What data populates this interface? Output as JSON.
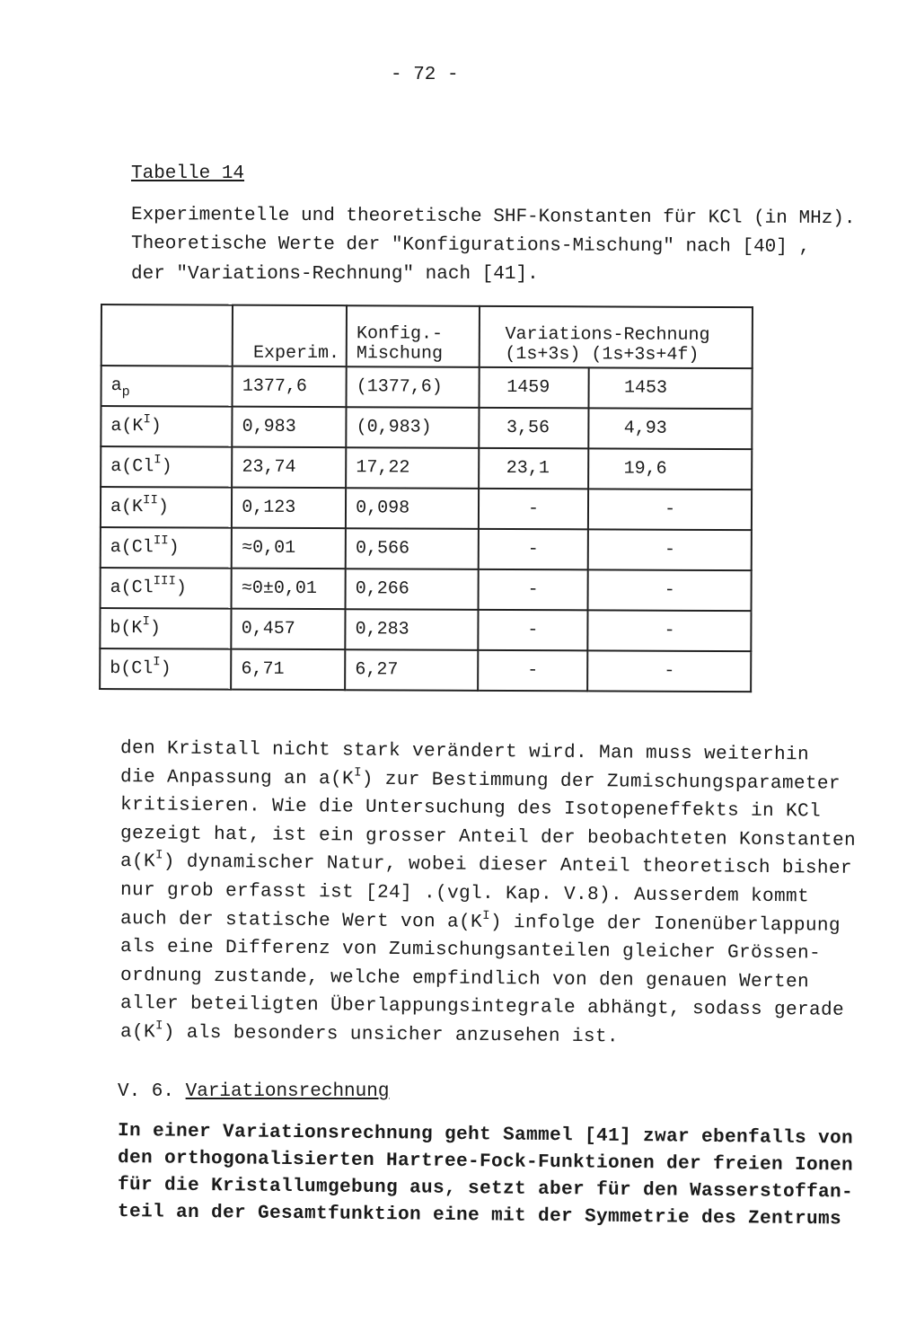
{
  "page_number": "- 72 -",
  "table_label": "Tabelle 14",
  "caption": [
    "Experimentelle und theoretische SHF-Konstanten für KCl (in MHz).",
    "Theoretische Werte der \"Konfigurations-Mischung\" nach [40] ,",
    "der \"Variations-Rechnung\" nach [41]."
  ],
  "table": {
    "headers": {
      "experim": "Experim.",
      "konfig_1": "Konfig.-",
      "konfig_2": "Mischung",
      "variation": "Variations-Rechnung",
      "var_a": "(1s+3s)",
      "var_b": "(1s+3s+4f)"
    },
    "rows": [
      {
        "base": "a",
        "sub": "p",
        "sup": "",
        "close": "",
        "exp": "1377,6",
        "konfig": "(1377,6)",
        "v1": "1459",
        "v2": "1453"
      },
      {
        "base": "a(K",
        "sub": "",
        "sup": "I",
        "close": ")",
        "exp": "0,983",
        "konfig": "(0,983)",
        "v1": "3,56",
        "v2": "4,93"
      },
      {
        "base": "a(Cl",
        "sub": "",
        "sup": "I",
        "close": ")",
        "exp": "23,74",
        "konfig": "17,22",
        "v1": "23,1",
        "v2": "19,6"
      },
      {
        "base": "a(K",
        "sub": "",
        "sup": "II",
        "close": ")",
        "exp": "0,123",
        "konfig": "0,098",
        "v1": "-",
        "v2": "-"
      },
      {
        "base": "a(Cl",
        "sub": "",
        "sup": "II",
        "close": ")",
        "exp": "≈0,01",
        "konfig": "0,566",
        "v1": "-",
        "v2": "-"
      },
      {
        "base": "a(Cl",
        "sub": "",
        "sup": "III",
        "close": ")",
        "exp": "≈0±0,01",
        "konfig": "0,266",
        "v1": "-",
        "v2": "-"
      },
      {
        "base": "b(K",
        "sub": "",
        "sup": "I",
        "close": ")",
        "exp": "0,457",
        "konfig": "0,283",
        "v1": "-",
        "v2": "-"
      },
      {
        "base": "b(Cl",
        "sub": "",
        "sup": "I",
        "close": ")",
        "exp": "6,71",
        "konfig": "6,27",
        "v1": "-",
        "v2": "-"
      }
    ]
  },
  "paragraph1": [
    [
      {
        "t": "den Kristall nicht stark verändert wird. Man muss weiterhin"
      }
    ],
    [
      {
        "t": "die Anpassung an a(K"
      },
      {
        "sup": "I"
      },
      {
        "t": ") zur Bestimmung der Zumischungsparameter"
      }
    ],
    [
      {
        "t": "kritisieren. Wie die Untersuchung des Isotopeneffekts in KCl"
      }
    ],
    [
      {
        "t": "gezeigt hat, ist ein grosser Anteil der beobachteten Konstanten"
      }
    ],
    [
      {
        "t": "a(K"
      },
      {
        "sup": "I"
      },
      {
        "t": ") dynamischer Natur, wobei dieser Anteil theoretisch bisher"
      }
    ],
    [
      {
        "t": "nur grob erfasst ist [24] .(vgl. Kap. V.8). Ausserdem kommt"
      }
    ],
    [
      {
        "t": "auch der statische Wert von a(K"
      },
      {
        "sup": "I"
      },
      {
        "t": ") infolge der Ionenüberlappung"
      }
    ],
    [
      {
        "t": "als eine Differenz von Zumischungsanteilen gleicher Grössen-"
      }
    ],
    [
      {
        "t": "ordnung zustande, welche empfindlich von den genauen Werten"
      }
    ],
    [
      {
        "t": "aller beteiligten Überlappungsintegrale abhängt, sodass gerade"
      }
    ],
    [
      {
        "t": "a(K"
      },
      {
        "sup": "I"
      },
      {
        "t": ") als besonders unsicher anzusehen ist."
      }
    ]
  ],
  "section": {
    "number": "V. 6.",
    "title": "Variationsrechnung"
  },
  "paragraph2": [
    "In einer Variationsrechnung geht Sammel [41] zwar ebenfalls von",
    "den orthogonalisierten Hartree-Fock-Funktionen der freien Ionen",
    "für die Kristallumgebung aus, setzt aber für den Wasserstoffan-",
    "teil an der Gesamtfunktion eine mit der Symmetrie des Zentrums"
  ]
}
